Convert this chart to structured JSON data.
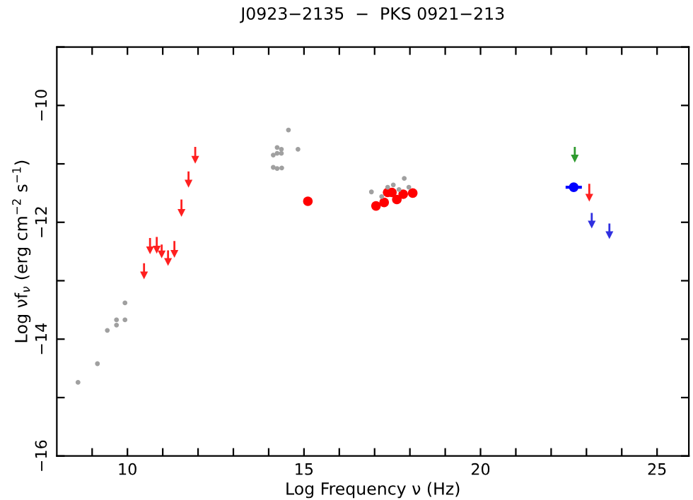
{
  "chart_data": {
    "type": "scatter",
    "title": "J0923−2135  −  PKS 0921−213",
    "xlabel": "Log Frequency ν (Hz)",
    "ylabel": "Log νf$_{ν}$ (erg cm$^{−2}$ s$^{−1}$)",
    "xlim": [
      8,
      25.9
    ],
    "ylim": [
      -16,
      -9
    ],
    "xticks": [
      {
        "value": 9,
        "label": null
      },
      10,
      {
        "value": 11,
        "label": null
      },
      {
        "value": 12,
        "label": null
      },
      {
        "value": 13,
        "label": null
      },
      {
        "value": 14,
        "label": null
      },
      15,
      {
        "value": 16,
        "label": null
      },
      {
        "value": 17,
        "label": null
      },
      {
        "value": 18,
        "label": null
      },
      {
        "value": 19,
        "label": null
      },
      20,
      {
        "value": 21,
        "label": null
      },
      {
        "value": 22,
        "label": null
      },
      {
        "value": 23,
        "label": null
      },
      {
        "value": 24,
        "label": null
      },
      25
    ],
    "yticks": [
      -16,
      {
        "value": -15,
        "label": null
      },
      -14,
      {
        "value": -13,
        "label": null
      },
      -12,
      {
        "value": -11,
        "label": null
      },
      -10,
      {
        "value": -9,
        "label": null
      }
    ],
    "grid": false,
    "legend": false,
    "series": [
      {
        "color": "#a0a0a0",
        "marker": "circle",
        "x": [
          8.6,
          9.15,
          9.43,
          9.69,
          9.69,
          9.93,
          9.93
        ],
        "values": [
          -14.74,
          -14.42,
          -13.85,
          -13.76,
          -13.67,
          -13.67,
          -13.38
        ]
      },
      {
        "color": "#ff2020",
        "marker": "triangle",
        "x": [
          10.47,
          10.64,
          10.83,
          10.97,
          11.15,
          11.33,
          11.53,
          11.73,
          11.92
        ],
        "values": [
          -12.91,
          -12.48,
          -12.47,
          -12.55,
          -12.68,
          -12.54,
          -11.84,
          -11.34,
          -10.93
        ],
        "errors": [
          [
            -12.91,
            -12.7
          ],
          [
            -12.48,
            -12.27
          ],
          [
            -12.47,
            -12.25
          ],
          [
            -12.55,
            -12.38
          ],
          [
            -12.68,
            -12.48
          ],
          [
            -12.54,
            -12.32
          ],
          [
            -11.84,
            -11.61
          ],
          [
            -11.34,
            -11.13
          ],
          [
            -10.93,
            -10.71
          ]
        ]
      },
      {
        "color": "#a0a0a0",
        "marker": "circle",
        "x": [
          14.56,
          14.24,
          14.36,
          14.36,
          14.24,
          14.13,
          14.83,
          14.13,
          14.24,
          14.37
        ],
        "values": [
          -10.42,
          -10.72,
          -10.75,
          -10.82,
          -10.82,
          -10.85,
          -10.75,
          -11.06,
          -11.08,
          -11.07
        ]
      },
      {
        "color": "#ff0000",
        "marker": "circle",
        "x": [
          15.11
        ],
        "values": [
          -11.64
        ]
      },
      {
        "color": "#a0a0a0",
        "marker": "circle",
        "x": [
          16.91,
          17.2,
          17.37,
          17.53,
          17.69,
          17.84,
          17.97
        ],
        "values": [
          -11.48,
          -11.56,
          -11.4,
          -11.36,
          -11.44,
          -11.25,
          -11.4
        ]
      },
      {
        "color": "#ff0000",
        "marker": "circle",
        "x": [
          17.04,
          17.27,
          17.37,
          17.49,
          17.63,
          17.81,
          18.08
        ],
        "values": [
          -11.72,
          -11.66,
          -11.49,
          -11.49,
          -11.61,
          -11.52,
          -11.5
        ]
      },
      {
        "color": "#2e9a2e",
        "marker": "triangle",
        "x": [
          22.67
        ],
        "values": [
          -10.91
        ],
        "errors": [
          [
            -10.91,
            -10.71
          ]
        ]
      },
      {
        "color": "#0000ff",
        "marker": "circle",
        "x": [
          22.64
        ],
        "values": [
          -11.4
        ],
        "xerrors": [
          0.23
        ]
      },
      {
        "color": "#ff2020",
        "marker": "triangle",
        "x": [
          23.08
        ],
        "values": [
          -11.58
        ],
        "errors": [
          [
            -11.58,
            -11.34
          ]
        ]
      },
      {
        "color": "#3030e0",
        "marker": "triangle",
        "x": [
          23.15,
          23.65
        ],
        "values": [
          -12.04,
          -12.22
        ],
        "errors": [
          [
            -12.04,
            -11.84
          ],
          [
            -12.22,
            -12.02
          ]
        ]
      }
    ]
  }
}
